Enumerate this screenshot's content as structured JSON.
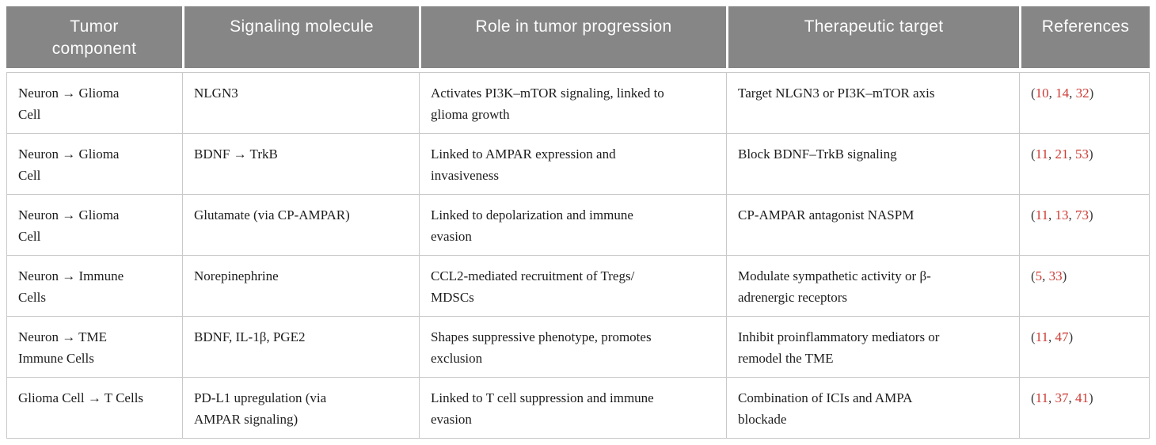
{
  "colors": {
    "header_bg": "#868686",
    "header_text": "#fcfcfc",
    "body_text": "#1d1d1d",
    "grid_line": "#c9c9c9",
    "reference_accent": "#cc3a33"
  },
  "table": {
    "headers": [
      {
        "key": "tumor_component",
        "label": "Tumor\ncomponent"
      },
      {
        "key": "signaling_molecule",
        "label": "Signaling molecule"
      },
      {
        "key": "role",
        "label": "Role in tumor progression"
      },
      {
        "key": "target",
        "label": "Therapeutic target"
      },
      {
        "key": "references",
        "label": "References"
      }
    ],
    "rows": [
      {
        "tumor_component": "Neuron → Glioma\nCell",
        "signaling_molecule": "NLGN3",
        "role": "Activates PI3K–mTOR signaling, linked to\nglioma growth",
        "target": "Target NLGN3 or PI3K–mTOR axis",
        "references": [
          "10",
          "14",
          "32"
        ]
      },
      {
        "tumor_component": "Neuron → Glioma\nCell",
        "signaling_molecule": "BDNF → TrkB",
        "role": "Linked to AMPAR expression and\ninvasiveness",
        "target": "Block BDNF–TrkB signaling",
        "references": [
          "11",
          "21",
          "53"
        ]
      },
      {
        "tumor_component": "Neuron → Glioma\nCell",
        "signaling_molecule": "Glutamate (via CP-AMPAR)",
        "role": "Linked to depolarization and immune\nevasion",
        "target": "CP-AMPAR antagonist NASPM",
        "references": [
          "11",
          "13",
          "73"
        ]
      },
      {
        "tumor_component": "Neuron → Immune\nCells",
        "signaling_molecule": "Norepinephrine",
        "role": "CCL2-mediated recruitment of Tregs/\nMDSCs",
        "target": "Modulate sympathetic activity or β-\nadrenergic receptors",
        "references": [
          "5",
          "33"
        ]
      },
      {
        "tumor_component": "Neuron → TME\nImmune Cells",
        "signaling_molecule": "BDNF, IL-1β, PGE2",
        "role": "Shapes suppressive phenotype, promotes\nexclusion",
        "target": "Inhibit proinflammatory mediators or\nremodel the TME",
        "references": [
          "11",
          "47"
        ]
      },
      {
        "tumor_component": "Glioma Cell → T Cells",
        "signaling_molecule": "PD-L1 upregulation (via\nAMPAR signaling)",
        "role": "Linked to T cell suppression and immune\nevasion",
        "target": "Combination of ICIs and AMPA\nblockade",
        "references": [
          "11",
          "37",
          "41"
        ]
      }
    ],
    "reference_format": {
      "open": "(",
      "separator": ", ",
      "close": ")"
    }
  }
}
